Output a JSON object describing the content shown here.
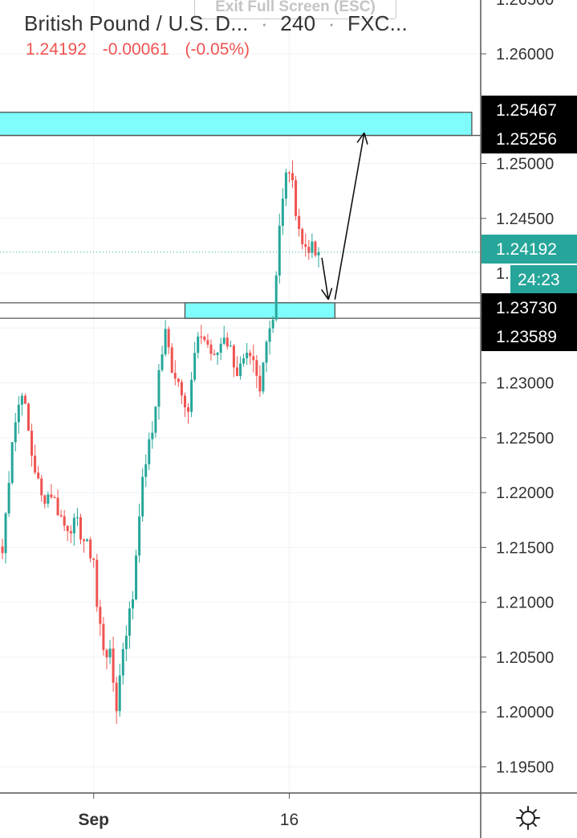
{
  "header": {
    "title": "British Pound / U.S. D...",
    "interval": "240",
    "source": "FXC...",
    "last_price": "1.24192",
    "change": "-0.00061",
    "change_pct": "(-0.05%)",
    "exit_fullscreen": "Exit Full Screen (ESC)"
  },
  "colors": {
    "up": "#26a69a",
    "down": "#ef5350",
    "zone_fill": "#7ffcfc",
    "label_dark": "#000000",
    "label_price": "#26a69a",
    "grid": "#eef2f6",
    "axis_text": "#333333"
  },
  "price_axis": {
    "ticks": [
      "1.26000",
      "1.25000",
      "1.24500",
      "1.23000",
      "1.22500",
      "1.22000",
      "1.21500",
      "1.21000",
      "1.20500",
      "1.20000",
      "1.19500"
    ],
    "tick_values": [
      1.26,
      1.25,
      1.245,
      1.23,
      1.225,
      1.22,
      1.215,
      1.21,
      1.205,
      1.2,
      1.195
    ],
    "top_partial": "1.26500",
    "hidden_partial": "1.",
    "labels": [
      {
        "text": "1.25467",
        "value": 1.25467,
        "kind": "dark"
      },
      {
        "text": "1.25256",
        "value": 1.25256,
        "kind": "dark"
      },
      {
        "text": "1.24192",
        "value": 1.24192,
        "kind": "price"
      },
      {
        "text": "24:23",
        "kind": "countdown"
      },
      {
        "text": "1.23730",
        "value": 1.2373,
        "kind": "dark"
      },
      {
        "text": "1.23589",
        "value": 1.23589,
        "kind": "dark"
      }
    ]
  },
  "time_axis": {
    "labels": [
      "Sep",
      "16"
    ]
  },
  "settings_icon": "gear-icon",
  "chart_data": {
    "type": "candlestick",
    "symbol": "British Pound / U.S. D...",
    "interval": "240",
    "ylim": [
      1.1925,
      1.2655
    ],
    "x_labels": [
      {
        "label": "Sep",
        "bar": 28
      },
      {
        "label": "16",
        "bar": 88
      }
    ],
    "zones": [
      {
        "from": 1.25256,
        "to": 1.25467,
        "start_bar": -1,
        "end_bar": 144
      },
      {
        "from": 1.23589,
        "to": 1.2373,
        "start_bar": 56,
        "end_bar": 102
      }
    ],
    "horizontal_lines": [
      1.25256,
      1.2373,
      1.23589
    ],
    "price_line": 1.24192,
    "arrows": [
      {
        "from": [
          98,
          1.2414
        ],
        "to": [
          100,
          1.2376
        ]
      },
      {
        "from": [
          102,
          1.2376
        ],
        "to": [
          111,
          1.2528
        ]
      }
    ],
    "anchors": [
      [
        0,
        1.2145
      ],
      [
        3,
        1.225
      ],
      [
        6,
        1.2295
      ],
      [
        9,
        1.2235
      ],
      [
        12,
        1.2195
      ],
      [
        15,
        1.22
      ],
      [
        19,
        1.217
      ],
      [
        23,
        1.217
      ],
      [
        26,
        1.215
      ],
      [
        28,
        1.214
      ],
      [
        29,
        1.2095
      ],
      [
        31,
        1.206
      ],
      [
        33,
        1.205
      ],
      [
        35,
        1.2005
      ],
      [
        37,
        1.206
      ],
      [
        40,
        1.2105
      ],
      [
        42,
        1.2185
      ],
      [
        44,
        1.223
      ],
      [
        46,
        1.2255
      ],
      [
        48,
        1.231
      ],
      [
        50,
        1.2345
      ],
      [
        52,
        1.2315
      ],
      [
        55,
        1.2295
      ],
      [
        57,
        1.2275
      ],
      [
        59,
        1.2325
      ],
      [
        61,
        1.2345
      ],
      [
        63,
        1.2335
      ],
      [
        65,
        1.232
      ],
      [
        68,
        1.2345
      ],
      [
        70,
        1.233
      ],
      [
        72,
        1.231
      ],
      [
        75,
        1.232
      ],
      [
        77,
        1.2315
      ],
      [
        79,
        1.229
      ],
      [
        81,
        1.2345
      ],
      [
        83,
        1.236
      ],
      [
        85,
        1.2445
      ],
      [
        86,
        1.2465
      ],
      [
        87,
        1.2488
      ],
      [
        88,
        1.2495
      ],
      [
        90,
        1.246
      ],
      [
        92,
        1.2425
      ],
      [
        94,
        1.2425
      ],
      [
        96,
        1.2417
      ],
      [
        97,
        1.2415
      ]
    ],
    "last_close": 1.24192
  }
}
